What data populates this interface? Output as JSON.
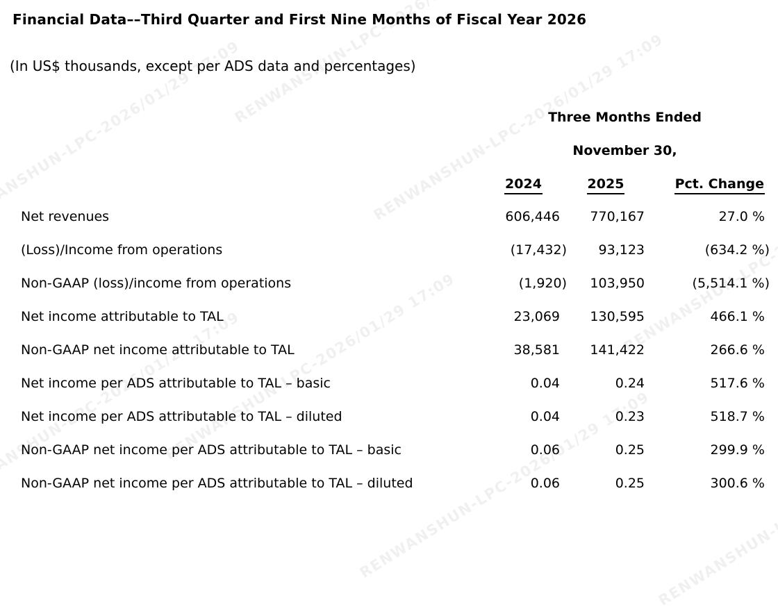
{
  "doc": {
    "title": "Financial Data––Third Quarter and First Nine Months of Fiscal Year 2026",
    "subtitle": "(In US$ thousands, except per ADS data and percentages)"
  },
  "table": {
    "period_header_line1": "Three Months Ended",
    "period_header_line2": "November 30,",
    "columns": {
      "col_2024": "2024",
      "col_2025": "2025",
      "col_pct": "Pct. Change"
    },
    "rows": [
      {
        "label": "Net revenues",
        "y2024": "606,446",
        "y2025": "770,167",
        "pct_change": "27.0 %"
      },
      {
        "label": "(Loss)/Income from operations",
        "y2024": "(17,432)",
        "y2025": "93,123",
        "pct_change": "(634.2 %)"
      },
      {
        "label": "Non-GAAP (loss)/income from operations",
        "y2024": "(1,920)",
        "y2025": "103,950",
        "pct_change": "(5,514.1 %)"
      },
      {
        "label": "Net income attributable to TAL",
        "y2024": "23,069",
        "y2025": "130,595",
        "pct_change": "466.1 %"
      },
      {
        "label": "Non-GAAP net income attributable to TAL",
        "y2024": "38,581",
        "y2025": "141,422",
        "pct_change": "266.6 %"
      },
      {
        "label": "Net income per ADS attributable to TAL – basic",
        "y2024": "0.04",
        "y2025": "0.24",
        "pct_change": "517.6 %"
      },
      {
        "label": "Net income per ADS attributable to TAL – diluted",
        "y2024": "0.04",
        "y2025": "0.23",
        "pct_change": "518.7 %"
      },
      {
        "label": "Non-GAAP net income per ADS attributable to TAL – basic",
        "y2024": "0.06",
        "y2025": "0.25",
        "pct_change": "299.9 %"
      },
      {
        "label": "Non-GAAP net income per ADS attributable to TAL – diluted",
        "y2024": "0.06",
        "y2025": "0.25",
        "pct_change": "300.6 %"
      }
    ]
  },
  "watermark": {
    "text": "RENWANSHUN-LPC-2026/01/29 17:09"
  },
  "colors": {
    "text": "#000000",
    "background": "#ffffff",
    "watermark_alpha": "rgba(0,0,0,0.06)"
  }
}
